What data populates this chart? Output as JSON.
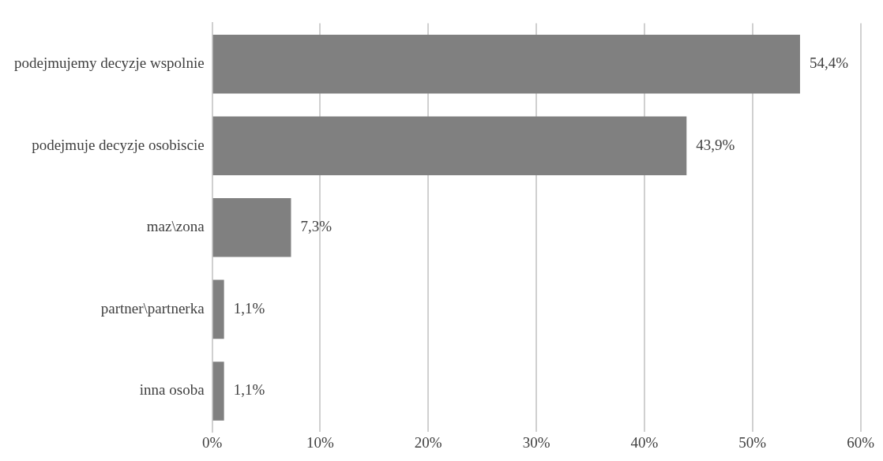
{
  "chart_data": {
    "type": "bar",
    "orientation": "horizontal",
    "categories": [
      "podejmujemy decyzje wspolnie",
      "podejmuje decyzje osobiscie",
      "maz\\zona",
      "partner\\partnerka",
      "inna osoba"
    ],
    "values": [
      54.4,
      43.9,
      7.3,
      1.1,
      1.1
    ],
    "color": "#808080",
    "value_labels": [
      "54,4%",
      "43,9%",
      "7,3%",
      "1,1%",
      "1,1%"
    ],
    "xlim": [
      0,
      60
    ],
    "xticks": [
      {
        "value": 0,
        "label": "0%"
      },
      {
        "value": 10,
        "label": "10%"
      },
      {
        "value": 20,
        "label": "20%"
      },
      {
        "value": 30,
        "label": "30%"
      },
      {
        "value": 40,
        "label": "40%"
      },
      {
        "value": 50,
        "label": "50%"
      },
      {
        "value": 60,
        "label": "60%"
      }
    ],
    "grid": "x",
    "legend": false
  }
}
